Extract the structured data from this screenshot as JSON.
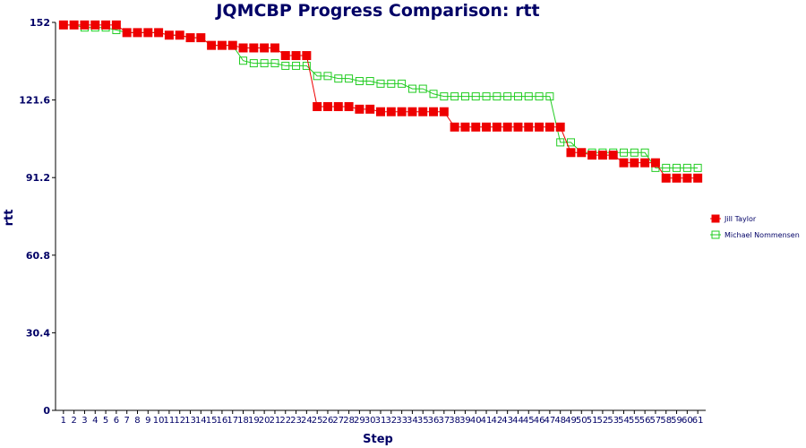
{
  "chart_data": {
    "type": "line",
    "title": "JQMCBP Progress Comparison: rtt",
    "xlabel": "Step",
    "ylabel": "rtt",
    "ylim": [
      0,
      152
    ],
    "yticks": [
      "0",
      "30.4",
      "60.8",
      "91.2",
      "121.6",
      "152"
    ],
    "x": [
      1,
      2,
      3,
      4,
      5,
      6,
      7,
      8,
      9,
      10,
      11,
      12,
      13,
      14,
      15,
      16,
      17,
      18,
      19,
      20,
      21,
      22,
      23,
      24,
      25,
      26,
      27,
      28,
      29,
      30,
      31,
      32,
      33,
      34,
      35,
      36,
      37,
      38,
      39,
      40,
      41,
      42,
      43,
      44,
      45,
      46,
      47,
      48,
      49,
      50,
      51,
      52,
      53,
      54,
      55,
      56,
      57,
      58,
      59,
      60,
      61
    ],
    "legend_position": "right",
    "series": [
      {
        "name": "Jill Taylor",
        "color": "#ee0000",
        "marker": "filled-square",
        "values": [
          151,
          151,
          151,
          151,
          151,
          151,
          148,
          148,
          148,
          148,
          147,
          147,
          146,
          146,
          143,
          143,
          143,
          142,
          142,
          142,
          142,
          139,
          139,
          139,
          119,
          119,
          119,
          119,
          118,
          118,
          117,
          117,
          117,
          117,
          117,
          117,
          117,
          111,
          111,
          111,
          111,
          111,
          111,
          111,
          111,
          111,
          111,
          111,
          101,
          101,
          100,
          100,
          100,
          97,
          97,
          97,
          97,
          91,
          91,
          91,
          91
        ]
      },
      {
        "name": "Michael Nommensen",
        "color": "#22cc22",
        "marker": "open-square",
        "values": [
          151,
          151,
          150,
          150,
          150,
          149,
          148,
          148,
          148,
          148,
          147,
          147,
          146,
          146,
          143,
          143,
          143,
          137,
          136,
          136,
          136,
          135,
          135,
          135,
          131,
          131,
          130,
          130,
          129,
          129,
          128,
          128,
          128,
          126,
          126,
          124,
          123,
          123,
          123,
          123,
          123,
          123,
          123,
          123,
          123,
          123,
          123,
          105,
          105,
          101,
          101,
          101,
          101,
          101,
          101,
          101,
          95,
          95,
          95,
          95,
          95
        ]
      }
    ]
  }
}
